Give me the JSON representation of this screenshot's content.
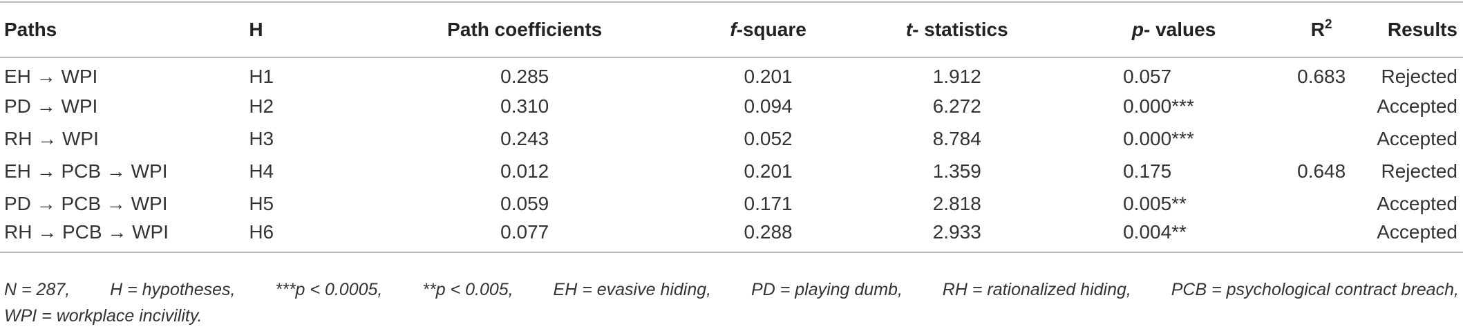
{
  "table": {
    "headers": {
      "paths": "Paths",
      "h": "H",
      "path_coefficients": "Path coefficients",
      "f_square_italic": "f",
      "f_square_rest": "-square",
      "t_italic": "t",
      "t_rest": "- statistics",
      "p_italic": "p",
      "p_rest": "- values",
      "r2_base": "R",
      "r2_sup": "2",
      "results": "Results"
    },
    "rows": [
      {
        "path": "EH → WPI",
        "h": "H1",
        "coef": "0.285",
        "f": "0.201",
        "t": "1.912",
        "p": "0.057",
        "r2": "0.683",
        "result": "Rejected"
      },
      {
        "path": "PD → WPI",
        "h": "H2",
        "coef": "0.310",
        "f": "0.094",
        "t": "6.272",
        "p": "0.000***",
        "r2": "",
        "result": "Accepted"
      },
      {
        "path": "RH → WPI",
        "h": "H3",
        "coef": "0.243",
        "f": "0.052",
        "t": "8.784",
        "p": "0.000***",
        "r2": "",
        "result": "Accepted"
      },
      {
        "path": "EH → PCB → WPI",
        "h": "H4",
        "coef": "0.012",
        "f": "0.201",
        "t": "1.359",
        "p": "0.175",
        "r2": "0.648",
        "result": "Rejected"
      },
      {
        "path": "PD → PCB → WPI",
        "h": "H5",
        "coef": "0.059",
        "f": "0.171",
        "t": "2.818",
        "p": "0.005**",
        "r2": "",
        "result": "Accepted"
      },
      {
        "path": "RH → PCB → WPI",
        "h": "H6",
        "coef": "0.077",
        "f": "0.288",
        "t": "2.933",
        "p": "0.004**",
        "r2": "",
        "result": "Accepted"
      }
    ]
  },
  "footnote": {
    "line1_parts": [
      "N = 287,",
      "H = hypotheses,",
      "***p < 0.0005,",
      "**p < 0.005,",
      "EH = evasive hiding,",
      "PD = playing dumb,",
      "RH = rationalized hiding,",
      "PCB = psychological contract breach,"
    ],
    "line2": "WPI = workplace incivility."
  }
}
